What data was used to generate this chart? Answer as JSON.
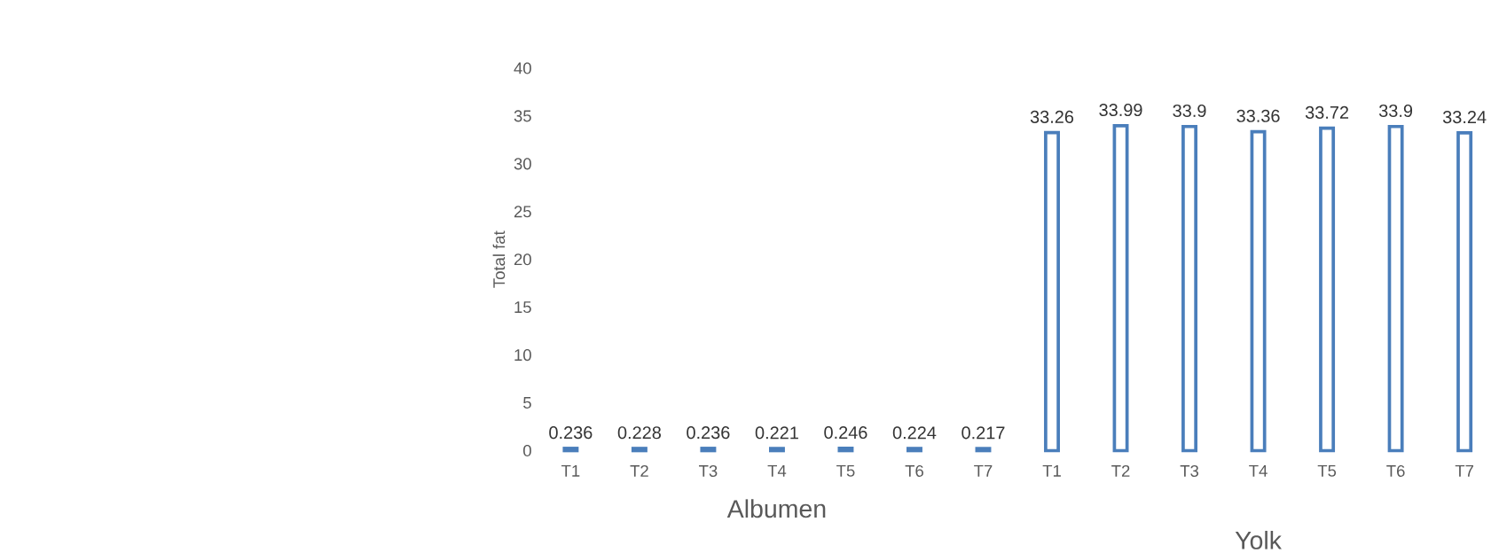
{
  "chart_data": {
    "type": "bar",
    "ylabel": "Total fat",
    "categories": [
      "T1",
      "T2",
      "T3",
      "T4",
      "T5",
      "T6",
      "T7",
      "T1",
      "T2",
      "T3",
      "T4",
      "T5",
      "T6",
      "T7"
    ],
    "values": [
      0.236,
      0.228,
      0.236,
      0.221,
      0.246,
      0.224,
      0.217,
      33.26,
      33.99,
      33.9,
      33.36,
      33.72,
      33.9,
      33.24
    ],
    "color": "#4a7ebb",
    "ylim": [
      0,
      40
    ],
    "yticks": [
      0,
      5,
      10,
      15,
      20,
      25,
      30,
      35,
      40
    ],
    "data_labels": true,
    "grid": false,
    "annotations": [
      "Albumen",
      "Yolk"
    ]
  }
}
